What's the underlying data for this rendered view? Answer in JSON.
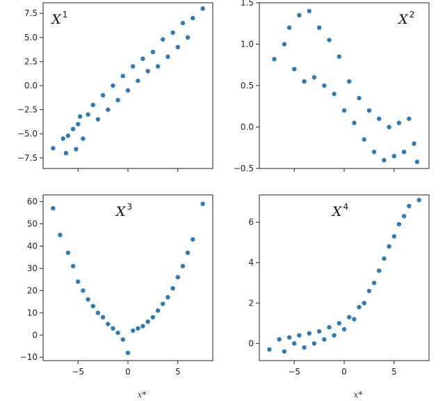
{
  "chart_data": [
    {
      "type": "scatter",
      "title_base": "X",
      "title_sup": "1",
      "title_position": "top-left",
      "xlabel": "",
      "xlim": [
        -8.5,
        8.5
      ],
      "ylim": [
        -8.6,
        8.6
      ],
      "xticks": [
        -5,
        0,
        5
      ],
      "yticks": [
        7.5,
        5.0,
        2.5,
        0.0,
        -2.5,
        -5.0,
        -7.5
      ],
      "ytick_labels": [
        "7.5",
        "5.0",
        "2.5",
        "0.0",
        "−2.5",
        "−5.0",
        "−7.5"
      ],
      "show_xtick_labels": false,
      "grid": false,
      "color": "#2d7ab8",
      "points": [
        [
          -7.5,
          -6.5
        ],
        [
          -6.5,
          -5.5
        ],
        [
          -6.2,
          -7.0
        ],
        [
          -6.0,
          -5.2
        ],
        [
          -5.5,
          -4.5
        ],
        [
          -5.2,
          -6.6
        ],
        [
          -5.0,
          -4.0
        ],
        [
          -4.8,
          -3.2
        ],
        [
          -4.5,
          -5.5
        ],
        [
          -4.0,
          -3.0
        ],
        [
          -3.5,
          -2.0
        ],
        [
          -3.0,
          -3.5
        ],
        [
          -2.5,
          -1.0
        ],
        [
          -2.0,
          -2.5
        ],
        [
          -1.5,
          0.0
        ],
        [
          -1.0,
          -1.5
        ],
        [
          -0.5,
          1.0
        ],
        [
          0.0,
          -0.5
        ],
        [
          0.5,
          2.0
        ],
        [
          1.0,
          0.5
        ],
        [
          1.5,
          2.8
        ],
        [
          2.0,
          1.5
        ],
        [
          2.5,
          3.5
        ],
        [
          3.0,
          2.0
        ],
        [
          3.5,
          4.8
        ],
        [
          4.0,
          3.0
        ],
        [
          4.5,
          5.5
        ],
        [
          5.0,
          4.0
        ],
        [
          5.5,
          6.5
        ],
        [
          6.0,
          5.0
        ],
        [
          6.5,
          7.0
        ],
        [
          7.5,
          8.0
        ]
      ]
    },
    {
      "type": "scatter",
      "title_base": "X",
      "title_sup": "2",
      "title_position": "top-right",
      "xlabel": "",
      "xlim": [
        -8.5,
        8.5
      ],
      "ylim": [
        -0.5,
        1.5
      ],
      "xticks": [
        -5,
        0,
        5
      ],
      "yticks": [
        1.5,
        1.0,
        0.5,
        0.0,
        -0.5
      ],
      "ytick_labels": [
        "1.5",
        "1.0",
        "0.5",
        "0.0",
        "−0.5"
      ],
      "show_xtick_labels": false,
      "grid": false,
      "color": "#2d7ab8",
      "points": [
        [
          -7.0,
          0.82
        ],
        [
          -6.0,
          1.0
        ],
        [
          -5.5,
          1.2
        ],
        [
          -5.0,
          0.7
        ],
        [
          -4.5,
          1.35
        ],
        [
          -4.0,
          0.55
        ],
        [
          -3.5,
          1.4
        ],
        [
          -3.0,
          0.6
        ],
        [
          -2.5,
          1.2
        ],
        [
          -2.0,
          0.5
        ],
        [
          -1.5,
          1.05
        ],
        [
          -1.0,
          0.4
        ],
        [
          -0.5,
          0.85
        ],
        [
          0.0,
          0.2
        ],
        [
          0.5,
          0.55
        ],
        [
          1.0,
          0.05
        ],
        [
          1.5,
          0.35
        ],
        [
          2.0,
          -0.15
        ],
        [
          2.5,
          0.2
        ],
        [
          3.0,
          -0.3
        ],
        [
          3.5,
          0.1
        ],
        [
          4.0,
          -0.4
        ],
        [
          4.5,
          0.0
        ],
        [
          5.0,
          -0.35
        ],
        [
          5.5,
          0.05
        ],
        [
          6.0,
          -0.3
        ],
        [
          6.5,
          0.1
        ],
        [
          7.0,
          -0.2
        ],
        [
          7.3,
          -0.42
        ]
      ]
    },
    {
      "type": "scatter",
      "title_base": "X",
      "title_sup": "3",
      "title_position": "top-center",
      "xlabel": "x*",
      "xlim": [
        -8.5,
        8.5
      ],
      "ylim": [
        -11.5,
        63
      ],
      "xticks": [
        -5,
        0,
        5
      ],
      "xtick_labels": [
        "−5",
        "0",
        "5"
      ],
      "yticks": [
        60,
        50,
        40,
        30,
        20,
        10,
        0,
        -10
      ],
      "ytick_labels": [
        "60",
        "50",
        "40",
        "30",
        "20",
        "10",
        "0",
        "−10"
      ],
      "show_xtick_labels": true,
      "grid": false,
      "color": "#2d7ab8",
      "points": [
        [
          -7.5,
          57
        ],
        [
          -6.8,
          45
        ],
        [
          -6.0,
          37
        ],
        [
          -5.5,
          31
        ],
        [
          -5.0,
          24
        ],
        [
          -4.5,
          20
        ],
        [
          -4.0,
          16
        ],
        [
          -3.5,
          13
        ],
        [
          -3.0,
          10
        ],
        [
          -2.5,
          8
        ],
        [
          -2.0,
          5
        ],
        [
          -1.5,
          3
        ],
        [
          -1.0,
          1
        ],
        [
          -0.5,
          -2
        ],
        [
          0.0,
          -8
        ],
        [
          0.5,
          2
        ],
        [
          1.0,
          3
        ],
        [
          1.5,
          4
        ],
        [
          2.0,
          6
        ],
        [
          2.5,
          8
        ],
        [
          3.0,
          11
        ],
        [
          3.5,
          14
        ],
        [
          4.0,
          17
        ],
        [
          4.5,
          21
        ],
        [
          5.0,
          26
        ],
        [
          5.5,
          31
        ],
        [
          6.0,
          37
        ],
        [
          6.5,
          43
        ],
        [
          7.5,
          59
        ]
      ]
    },
    {
      "type": "scatter",
      "title_base": "X",
      "title_sup": "4",
      "title_position": "top-center",
      "xlabel": "x*",
      "xlim": [
        -8.5,
        8.5
      ],
      "ylim": [
        -0.85,
        7.35
      ],
      "xticks": [
        -5,
        0,
        5
      ],
      "xtick_labels": [
        "−5",
        "0",
        "5"
      ],
      "yticks": [
        6,
        4,
        2,
        0
      ],
      "ytick_labels": [
        "6",
        "4",
        "2",
        "0"
      ],
      "show_xtick_labels": true,
      "grid": false,
      "color": "#2d7ab8",
      "points": [
        [
          -7.5,
          -0.3
        ],
        [
          -6.5,
          0.2
        ],
        [
          -6.0,
          -0.4
        ],
        [
          -5.5,
          0.3
        ],
        [
          -5.0,
          0.0
        ],
        [
          -4.5,
          0.4
        ],
        [
          -4.0,
          -0.2
        ],
        [
          -3.5,
          0.5
        ],
        [
          -3.0,
          0.0
        ],
        [
          -2.5,
          0.6
        ],
        [
          -2.0,
          0.2
        ],
        [
          -1.5,
          0.8
        ],
        [
          -1.0,
          0.4
        ],
        [
          -0.5,
          1.0
        ],
        [
          0.0,
          0.7
        ],
        [
          0.5,
          1.3
        ],
        [
          1.0,
          1.2
        ],
        [
          1.5,
          1.8
        ],
        [
          2.0,
          2.0
        ],
        [
          2.5,
          2.6
        ],
        [
          3.0,
          3.0
        ],
        [
          3.5,
          3.6
        ],
        [
          4.0,
          4.2
        ],
        [
          4.5,
          4.8
        ],
        [
          5.0,
          5.3
        ],
        [
          5.5,
          5.9
        ],
        [
          6.0,
          6.3
        ],
        [
          6.5,
          6.8
        ],
        [
          7.5,
          7.1
        ]
      ]
    }
  ]
}
